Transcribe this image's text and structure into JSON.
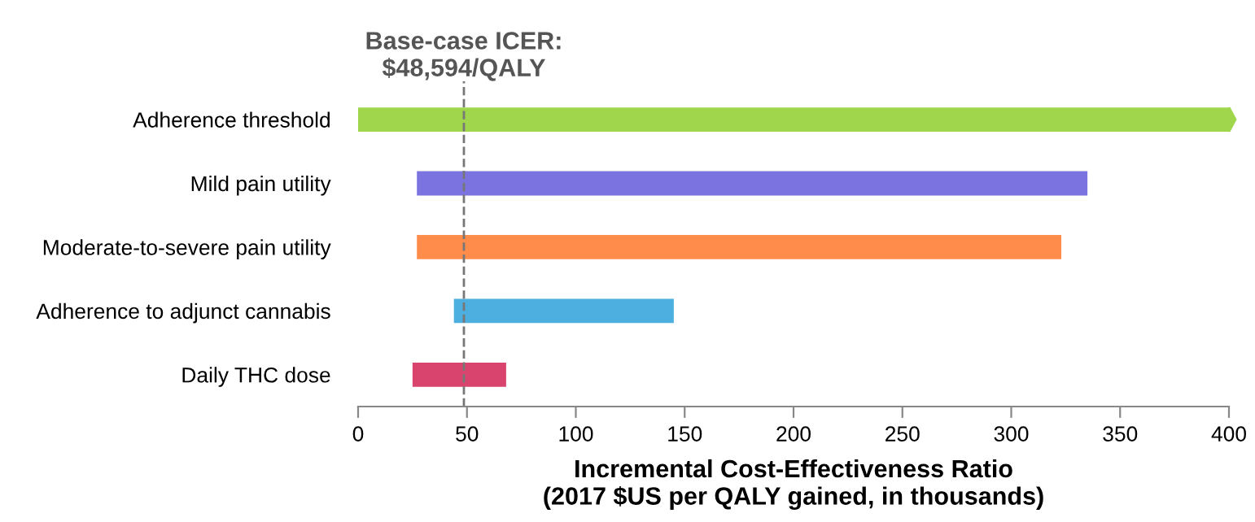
{
  "chart_data": {
    "type": "bar",
    "orientation": "horizontal",
    "categories": [
      "Adherence threshold",
      "Mild pain utility",
      "Moderate-to-severe pain utility",
      "Adherence to adjunct cannabis",
      "Daily THC dose"
    ],
    "base": [
      0,
      27,
      27,
      44,
      25
    ],
    "values": [
      400,
      308,
      296,
      101,
      43
    ],
    "colors": [
      "#9fd64b",
      "#7b74e0",
      "#ff8c4b",
      "#4daee0",
      "#d9446e"
    ],
    "xlabel": "Incremental Cost-Effectiveness Ratio\n(2017 $US per QALY gained, in thousands)",
    "xlim": [
      0,
      400
    ],
    "xticks": [
      0,
      50,
      100,
      150,
      200,
      250,
      300,
      350,
      400
    ],
    "ref_lines": [
      {
        "axis": "x",
        "value": 48.594,
        "label": "Base-case ICER:\n$48,594/QALY",
        "color": "#777777",
        "line_style": "dashed"
      }
    ],
    "grid": false,
    "legend": false
  }
}
